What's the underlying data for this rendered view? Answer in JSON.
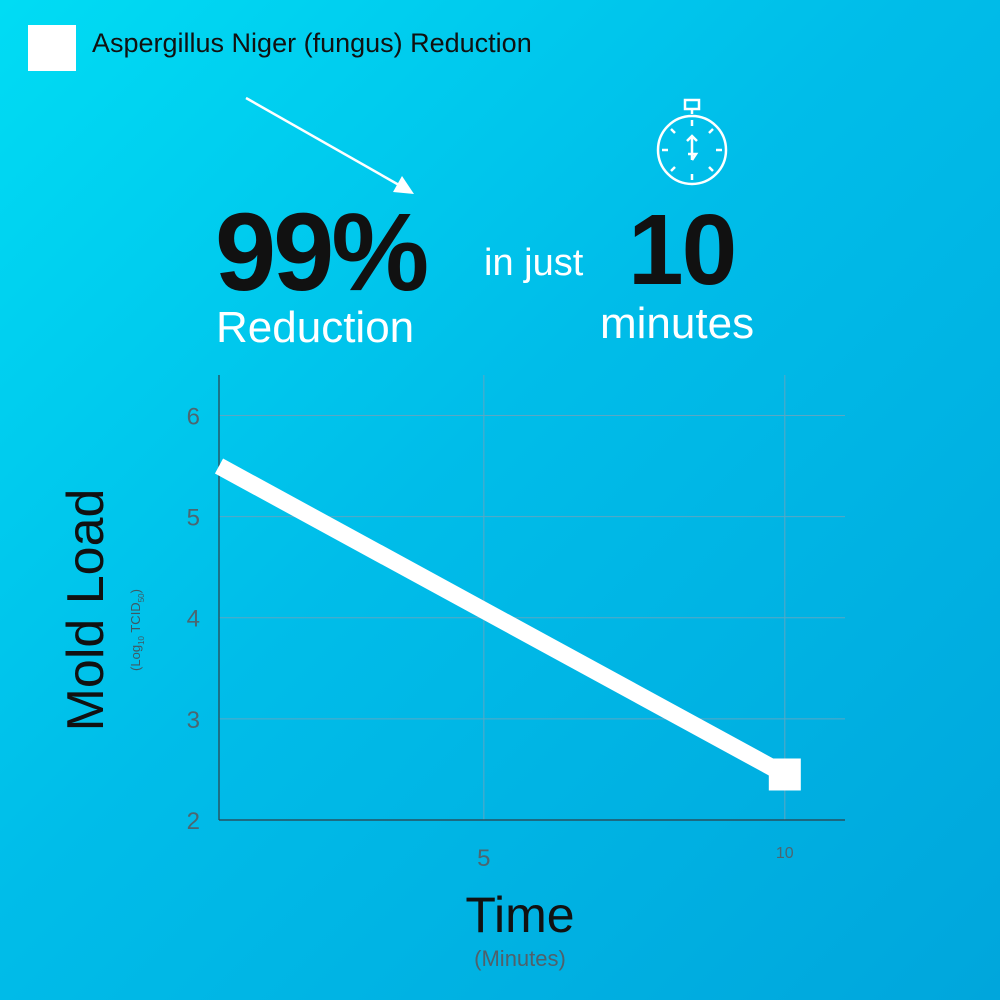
{
  "legend": {
    "label": "Aspergillus Niger (fungus) Reduction"
  },
  "headline": {
    "percent": "99%",
    "percent_label": "Reduction",
    "connector": "in just",
    "minutes": "10",
    "minutes_label": "minutes"
  },
  "colors": {
    "line": "#ffffff",
    "grid": "#5aa7c4",
    "text_dark": "#111111",
    "tick": "#4c6670"
  },
  "icons": {
    "timer": "stopwatch-icon",
    "pointer": "arrow-icon"
  },
  "chart_data": {
    "type": "line",
    "ylabel": "Mold Load",
    "ylabel_unit_parts": [
      "(Log",
      "10",
      " TCID",
      "50",
      ")"
    ],
    "xlabel": "Time",
    "xlabel_unit": "(Minutes)",
    "xticks": [
      5,
      10
    ],
    "xtick_labels": [
      "5",
      "10"
    ],
    "yticks": [
      2,
      3,
      4,
      5,
      6
    ],
    "ytick_labels": [
      "2",
      "3",
      "4",
      "5",
      "6"
    ],
    "xlim": [
      0.6,
      11
    ],
    "ylim": [
      2,
      6.4
    ],
    "grid": true,
    "series": [
      {
        "x": [
          0.6,
          10
        ],
        "y": [
          5.5,
          2.45
        ],
        "end_marker": "square"
      }
    ]
  }
}
